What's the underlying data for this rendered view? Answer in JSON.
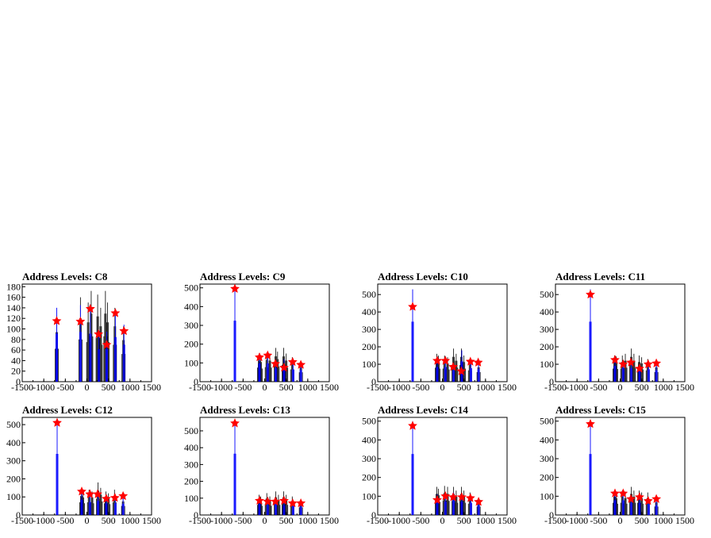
{
  "chart_data": [
    {
      "type": "bar",
      "title": "Address Levels: C8",
      "xlim": [
        -1500,
        1500
      ],
      "ylim": [
        0,
        185
      ],
      "xticks": [
        "-1500",
        "-1000",
        "-500",
        "0",
        "500",
        "1000",
        "1500"
      ],
      "yticks": [
        "0",
        "20",
        "40",
        "60",
        "80",
        "100",
        "120",
        "140",
        "160",
        "180"
      ],
      "black_peaks": [
        {
          "x": -700,
          "y": 125
        },
        {
          "x": -150,
          "y": 160
        },
        {
          "x": 30,
          "y": 150
        },
        {
          "x": 100,
          "y": 172
        },
        {
          "x": 250,
          "y": 165
        },
        {
          "x": 320,
          "y": 140
        },
        {
          "x": 430,
          "y": 172
        },
        {
          "x": 480,
          "y": 150
        },
        {
          "x": 650,
          "y": 140
        },
        {
          "x": 850,
          "y": 105
        }
      ],
      "blue_peaks": [
        {
          "x": -700,
          "y": 140
        },
        {
          "x": -150,
          "y": 145
        },
        {
          "x": 80,
          "y": 140
        },
        {
          "x": 280,
          "y": 95
        },
        {
          "x": 460,
          "y": 95
        },
        {
          "x": 660,
          "y": 130
        },
        {
          "x": 860,
          "y": 108
        }
      ],
      "markers": [
        {
          "x": -700,
          "y": 115
        },
        {
          "x": -150,
          "y": 114
        },
        {
          "x": 80,
          "y": 138
        },
        {
          "x": 270,
          "y": 90
        },
        {
          "x": 460,
          "y": 70
        },
        {
          "x": 660,
          "y": 130
        },
        {
          "x": 860,
          "y": 96
        }
      ]
    },
    {
      "type": "bar",
      "title": "Address Levels: C9",
      "xlim": [
        -1500,
        1500
      ],
      "ylim": [
        0,
        520
      ],
      "xticks": [
        "-1500",
        "-1000",
        "-500",
        "0",
        "500",
        "1000",
        "1500"
      ],
      "yticks": [
        "0",
        "100",
        "200",
        "300",
        "400",
        "500"
      ],
      "black_peaks": [
        {
          "x": -130,
          "y": 150
        },
        {
          "x": -90,
          "y": 140
        },
        {
          "x": 50,
          "y": 155
        },
        {
          "x": 120,
          "y": 150
        },
        {
          "x": 260,
          "y": 180
        },
        {
          "x": 300,
          "y": 160
        },
        {
          "x": 440,
          "y": 180
        },
        {
          "x": 500,
          "y": 150
        },
        {
          "x": 640,
          "y": 130
        },
        {
          "x": 840,
          "y": 100
        }
      ],
      "blue_peaks": [
        {
          "x": -690,
          "y": 500
        },
        {
          "x": -120,
          "y": 150
        },
        {
          "x": 70,
          "y": 150
        },
        {
          "x": 260,
          "y": 110
        },
        {
          "x": 450,
          "y": 120
        },
        {
          "x": 660,
          "y": 100
        },
        {
          "x": 840,
          "y": 95
        }
      ],
      "markers": [
        {
          "x": -690,
          "y": 495
        },
        {
          "x": -120,
          "y": 130
        },
        {
          "x": 70,
          "y": 140
        },
        {
          "x": 250,
          "y": 95
        },
        {
          "x": 450,
          "y": 75
        },
        {
          "x": 650,
          "y": 105
        },
        {
          "x": 840,
          "y": 90
        }
      ]
    },
    {
      "type": "bar",
      "title": "Address Levels: C10",
      "xlim": [
        -1500,
        1500
      ],
      "ylim": [
        0,
        560
      ],
      "xticks": [
        "-1500",
        "-1000",
        "-500",
        "0",
        "500",
        "1000",
        "1500"
      ],
      "yticks": [
        "0",
        "100",
        "200",
        "300",
        "400",
        "500"
      ],
      "black_peaks": [
        {
          "x": -130,
          "y": 160
        },
        {
          "x": -90,
          "y": 150
        },
        {
          "x": 50,
          "y": 150
        },
        {
          "x": 120,
          "y": 140
        },
        {
          "x": 260,
          "y": 190
        },
        {
          "x": 320,
          "y": 160
        },
        {
          "x": 440,
          "y": 190
        },
        {
          "x": 500,
          "y": 150
        },
        {
          "x": 640,
          "y": 130
        },
        {
          "x": 840,
          "y": 110
        }
      ],
      "blue_peaks": [
        {
          "x": -690,
          "y": 530
        },
        {
          "x": -120,
          "y": 130
        },
        {
          "x": 70,
          "y": 130
        },
        {
          "x": 260,
          "y": 100
        },
        {
          "x": 450,
          "y": 180
        },
        {
          "x": 660,
          "y": 120
        },
        {
          "x": 840,
          "y": 110
        }
      ],
      "markers": [
        {
          "x": -690,
          "y": 430
        },
        {
          "x": -120,
          "y": 120
        },
        {
          "x": 70,
          "y": 120
        },
        {
          "x": 250,
          "y": 85
        },
        {
          "x": 440,
          "y": 60
        },
        {
          "x": 650,
          "y": 115
        },
        {
          "x": 830,
          "y": 110
        }
      ]
    },
    {
      "type": "bar",
      "title": "Address Levels: C11",
      "xlim": [
        -1500,
        1500
      ],
      "ylim": [
        0,
        560
      ],
      "xticks": [
        "-1500",
        "-1000",
        "-500",
        "0",
        "500",
        "1000",
        "1500"
      ],
      "yticks": [
        "0",
        "100",
        "200",
        "300",
        "400",
        "500"
      ],
      "black_peaks": [
        {
          "x": -130,
          "y": 150
        },
        {
          "x": -90,
          "y": 145
        },
        {
          "x": 50,
          "y": 150
        },
        {
          "x": 120,
          "y": 160
        },
        {
          "x": 260,
          "y": 190
        },
        {
          "x": 320,
          "y": 160
        },
        {
          "x": 440,
          "y": 150
        },
        {
          "x": 500,
          "y": 140
        },
        {
          "x": 640,
          "y": 130
        },
        {
          "x": 840,
          "y": 110
        }
      ],
      "blue_peaks": [
        {
          "x": -690,
          "y": 530
        },
        {
          "x": -120,
          "y": 140
        },
        {
          "x": 70,
          "y": 120
        },
        {
          "x": 260,
          "y": 120
        },
        {
          "x": 450,
          "y": 100
        },
        {
          "x": 660,
          "y": 110
        },
        {
          "x": 840,
          "y": 100
        }
      ],
      "markers": [
        {
          "x": -690,
          "y": 500
        },
        {
          "x": -120,
          "y": 125
        },
        {
          "x": 70,
          "y": 100
        },
        {
          "x": 250,
          "y": 110
        },
        {
          "x": 450,
          "y": 75
        },
        {
          "x": 650,
          "y": 100
        },
        {
          "x": 840,
          "y": 105
        }
      ]
    },
    {
      "type": "bar",
      "title": "Address Levels: C12",
      "xlim": [
        -1500,
        1500
      ],
      "ylim": [
        0,
        540
      ],
      "xticks": [
        "-1500",
        "-1000",
        "-500",
        "0",
        "500",
        "1000",
        "1500"
      ],
      "yticks": [
        "0",
        "100",
        "200",
        "300",
        "400",
        "500"
      ],
      "black_peaks": [
        {
          "x": -130,
          "y": 140
        },
        {
          "x": -90,
          "y": 130
        },
        {
          "x": 50,
          "y": 140
        },
        {
          "x": 120,
          "y": 130
        },
        {
          "x": 260,
          "y": 180
        },
        {
          "x": 320,
          "y": 150
        },
        {
          "x": 440,
          "y": 130
        },
        {
          "x": 500,
          "y": 120
        },
        {
          "x": 640,
          "y": 140
        },
        {
          "x": 840,
          "y": 100
        }
      ],
      "blue_peaks": [
        {
          "x": -690,
          "y": 520
        },
        {
          "x": -120,
          "y": 130
        },
        {
          "x": 70,
          "y": 110
        },
        {
          "x": 260,
          "y": 120
        },
        {
          "x": 450,
          "y": 100
        },
        {
          "x": 660,
          "y": 100
        },
        {
          "x": 840,
          "y": 95
        }
      ],
      "markers": [
        {
          "x": -690,
          "y": 510
        },
        {
          "x": -120,
          "y": 130
        },
        {
          "x": 70,
          "y": 115
        },
        {
          "x": 250,
          "y": 115
        },
        {
          "x": 450,
          "y": 90
        },
        {
          "x": 650,
          "y": 95
        },
        {
          "x": 840,
          "y": 105
        }
      ]
    },
    {
      "type": "bar",
      "title": "Address Levels: C13",
      "xlim": [
        -1500,
        1500
      ],
      "ylim": [
        0,
        580
      ],
      "xticks": [
        "-1500",
        "-1000",
        "-500",
        "0",
        "500",
        "1000",
        "1500"
      ],
      "yticks": [
        "0",
        "100",
        "200",
        "300",
        "400",
        "500"
      ],
      "black_peaks": [
        {
          "x": -130,
          "y": 120
        },
        {
          "x": -90,
          "y": 110
        },
        {
          "x": 50,
          "y": 130
        },
        {
          "x": 120,
          "y": 110
        },
        {
          "x": 260,
          "y": 140
        },
        {
          "x": 320,
          "y": 120
        },
        {
          "x": 440,
          "y": 140
        },
        {
          "x": 500,
          "y": 120
        },
        {
          "x": 640,
          "y": 110
        },
        {
          "x": 840,
          "y": 90
        }
      ],
      "blue_peaks": [
        {
          "x": -690,
          "y": 560
        },
        {
          "x": -120,
          "y": 100
        },
        {
          "x": 70,
          "y": 90
        },
        {
          "x": 260,
          "y": 100
        },
        {
          "x": 450,
          "y": 90
        },
        {
          "x": 660,
          "y": 80
        },
        {
          "x": 840,
          "y": 75
        }
      ],
      "markers": [
        {
          "x": -690,
          "y": 545
        },
        {
          "x": -120,
          "y": 85
        },
        {
          "x": 70,
          "y": 80
        },
        {
          "x": 250,
          "y": 80
        },
        {
          "x": 450,
          "y": 85
        },
        {
          "x": 650,
          "y": 70
        },
        {
          "x": 840,
          "y": 70
        }
      ]
    },
    {
      "type": "bar",
      "title": "Address Levels: C14",
      "xlim": [
        -1500,
        1500
      ],
      "ylim": [
        0,
        520
      ],
      "xticks": [
        "-1500",
        "-1000",
        "-500",
        "0",
        "500",
        "1000",
        "1500"
      ],
      "yticks": [
        "0",
        "100",
        "200",
        "300",
        "400",
        "500"
      ],
      "black_peaks": [
        {
          "x": -130,
          "y": 150
        },
        {
          "x": -90,
          "y": 140
        },
        {
          "x": 50,
          "y": 155
        },
        {
          "x": 120,
          "y": 150
        },
        {
          "x": 260,
          "y": 150
        },
        {
          "x": 320,
          "y": 130
        },
        {
          "x": 440,
          "y": 150
        },
        {
          "x": 500,
          "y": 130
        },
        {
          "x": 640,
          "y": 120
        },
        {
          "x": 840,
          "y": 90
        }
      ],
      "blue_peaks": [
        {
          "x": -690,
          "y": 500
        },
        {
          "x": -120,
          "y": 110
        },
        {
          "x": 70,
          "y": 110
        },
        {
          "x": 260,
          "y": 120
        },
        {
          "x": 450,
          "y": 110
        },
        {
          "x": 660,
          "y": 100
        },
        {
          "x": 840,
          "y": 80
        }
      ],
      "markers": [
        {
          "x": -690,
          "y": 475
        },
        {
          "x": -120,
          "y": 80
        },
        {
          "x": 70,
          "y": 100
        },
        {
          "x": 250,
          "y": 95
        },
        {
          "x": 450,
          "y": 95
        },
        {
          "x": 650,
          "y": 90
        },
        {
          "x": 840,
          "y": 70
        }
      ]
    },
    {
      "type": "bar",
      "title": "Address Levels: C15",
      "xlim": [
        -1500,
        1500
      ],
      "ylim": [
        0,
        520
      ],
      "xticks": [
        "-1500",
        "-1000",
        "-500",
        "0",
        "500",
        "1000",
        "1500"
      ],
      "yticks": [
        "0",
        "100",
        "200",
        "300",
        "400",
        "500"
      ],
      "black_peaks": [
        {
          "x": -130,
          "y": 130
        },
        {
          "x": -90,
          "y": 120
        },
        {
          "x": 50,
          "y": 130
        },
        {
          "x": 120,
          "y": 120
        },
        {
          "x": 260,
          "y": 150
        },
        {
          "x": 320,
          "y": 130
        },
        {
          "x": 440,
          "y": 130
        },
        {
          "x": 500,
          "y": 120
        },
        {
          "x": 640,
          "y": 120
        },
        {
          "x": 840,
          "y": 90
        }
      ],
      "blue_peaks": [
        {
          "x": -690,
          "y": 500
        },
        {
          "x": -120,
          "y": 120
        },
        {
          "x": 70,
          "y": 120
        },
        {
          "x": 260,
          "y": 100
        },
        {
          "x": 450,
          "y": 100
        },
        {
          "x": 660,
          "y": 90
        },
        {
          "x": 840,
          "y": 80
        }
      ],
      "markers": [
        {
          "x": -690,
          "y": 485
        },
        {
          "x": -120,
          "y": 115
        },
        {
          "x": 70,
          "y": 115
        },
        {
          "x": 250,
          "y": 85
        },
        {
          "x": 450,
          "y": 95
        },
        {
          "x": 650,
          "y": 75
        },
        {
          "x": 840,
          "y": 85
        }
      ]
    }
  ],
  "colors": {
    "black_series": "#000000",
    "blue_series": "#0000ff",
    "marker": "#ff0000"
  }
}
